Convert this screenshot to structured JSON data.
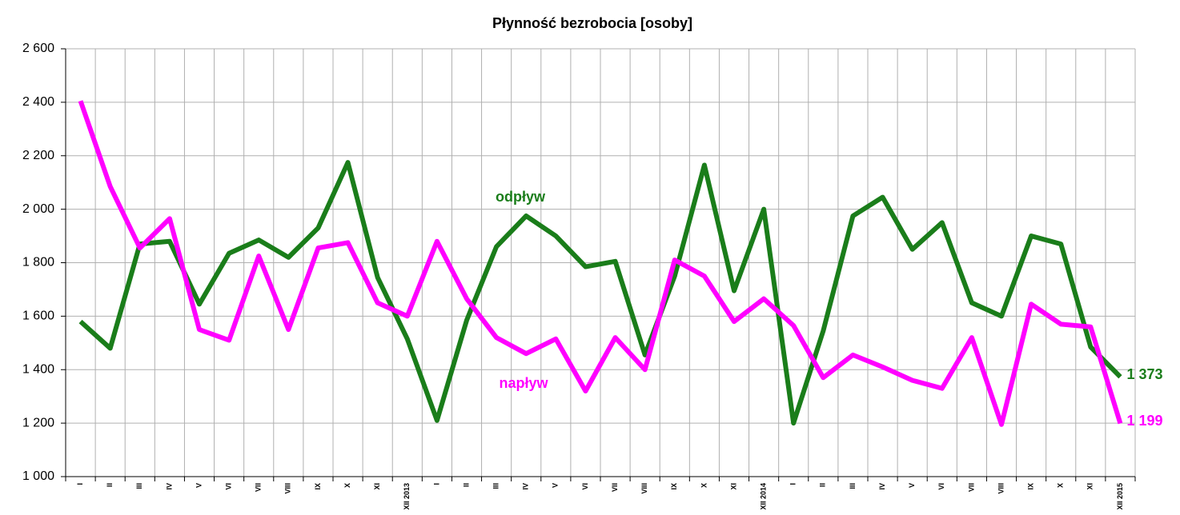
{
  "chart_data": {
    "type": "line",
    "title": "Płynność bezrobocia [osoby]",
    "categories": [
      "I",
      "II",
      "III",
      "IV",
      "V",
      "VI",
      "VII",
      "VIII",
      "IX",
      "X",
      "XI",
      "XII 2013",
      "I",
      "II",
      "III",
      "IV",
      "V",
      "VI",
      "VII",
      "VIII",
      "IX",
      "X",
      "XI",
      "XII 2014",
      "I",
      "II",
      "III",
      "IV",
      "V",
      "VI",
      "VII",
      "VIII",
      "IX",
      "X",
      "XI",
      "XII 2015"
    ],
    "series": [
      {
        "name": "odpływ",
        "color": "#1a7d1a",
        "values": [
          1580,
          1480,
          1870,
          1880,
          1645,
          1835,
          1885,
          1820,
          1930,
          2175,
          1745,
          1515,
          1210,
          1585,
          1860,
          1975,
          1900,
          1785,
          1805,
          1455,
          1750,
          2165,
          1695,
          2000,
          1200,
          1545,
          1975,
          2045,
          1850,
          1950,
          1650,
          1600,
          1900,
          1870,
          1485,
          1373
        ],
        "value_labels": [
          null,
          null,
          null,
          null,
          null,
          null,
          null,
          null,
          null,
          null,
          null,
          null,
          null,
          null,
          null,
          null,
          null,
          null,
          null,
          null,
          null,
          null,
          null,
          null,
          null,
          null,
          null,
          null,
          null,
          null,
          null,
          null,
          null,
          null,
          null,
          "1 373"
        ]
      },
      {
        "name": "napływ",
        "color": "#ff00ff",
        "values": [
          2405,
          2085,
          1855,
          1965,
          1550,
          1510,
          1825,
          1550,
          1855,
          1875,
          1650,
          1600,
          1880,
          1665,
          1520,
          1460,
          1515,
          1320,
          1520,
          1400,
          1810,
          1750,
          1580,
          1665,
          1565,
          1370,
          1455,
          1410,
          1360,
          1330,
          1520,
          1195,
          1645,
          1570,
          1560,
          1199
        ],
        "value_labels": [
          null,
          null,
          null,
          null,
          null,
          null,
          null,
          null,
          null,
          null,
          null,
          null,
          null,
          null,
          null,
          null,
          null,
          null,
          null,
          null,
          null,
          null,
          null,
          null,
          null,
          null,
          null,
          null,
          null,
          null,
          null,
          null,
          null,
          null,
          null,
          "1 199"
        ]
      }
    ],
    "ylim": [
      1000,
      2600
    ],
    "yticks": [
      {
        "value": 1000,
        "label": "1 000"
      },
      {
        "value": 1200,
        "label": "1 200"
      },
      {
        "value": 1400,
        "label": "1 400"
      },
      {
        "value": 1600,
        "label": "1 600"
      },
      {
        "value": 1800,
        "label": "1 800"
      },
      {
        "value": 2000,
        "label": "2 000"
      },
      {
        "value": 2200,
        "label": "2 200"
      },
      {
        "value": 2400,
        "label": "2 400"
      },
      {
        "value": 2600,
        "label": "2 600"
      }
    ],
    "grid": true
  }
}
